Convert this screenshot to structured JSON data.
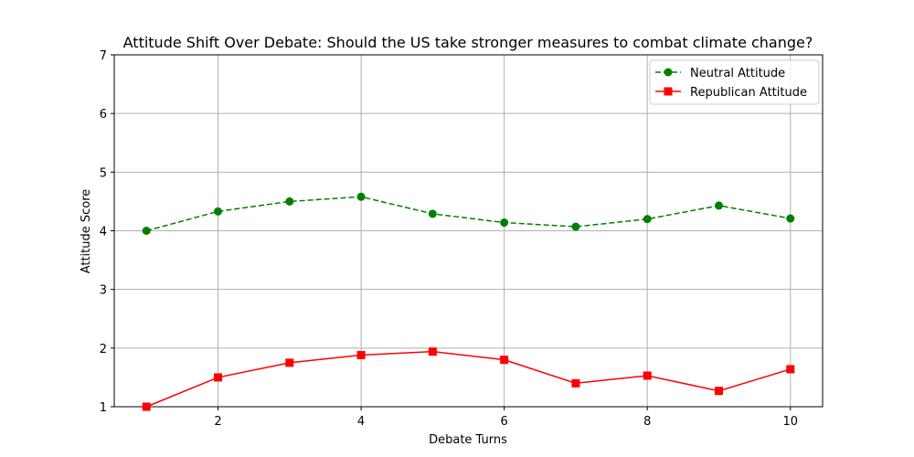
{
  "chart_data": {
    "type": "line",
    "title": "Attitude Shift Over Debate: Should the US take stronger measures to combat climate change?",
    "xlabel": "Debate Turns",
    "ylabel": "Attitude Score",
    "x": [
      1,
      2,
      3,
      4,
      5,
      6,
      7,
      8,
      9,
      10
    ],
    "xlim": [
      0.55,
      10.45
    ],
    "ylim": [
      1,
      7
    ],
    "xticks": [
      2,
      4,
      6,
      8,
      10
    ],
    "yticks": [
      1,
      2,
      3,
      4,
      5,
      6,
      7
    ],
    "grid": true,
    "legend_position": "top-right",
    "series": [
      {
        "name": "Neutral Attitude",
        "values": [
          4.0,
          4.33,
          4.5,
          4.58,
          4.29,
          4.14,
          4.07,
          4.2,
          4.43,
          4.21
        ],
        "color": "#008000",
        "line_style": "dashed",
        "marker": "circle"
      },
      {
        "name": "Republican Attitude",
        "values": [
          1.0,
          1.5,
          1.75,
          1.88,
          1.94,
          1.8,
          1.4,
          1.53,
          1.27,
          1.64
        ],
        "color": "#ff0000",
        "line_style": "solid",
        "marker": "square"
      }
    ]
  }
}
